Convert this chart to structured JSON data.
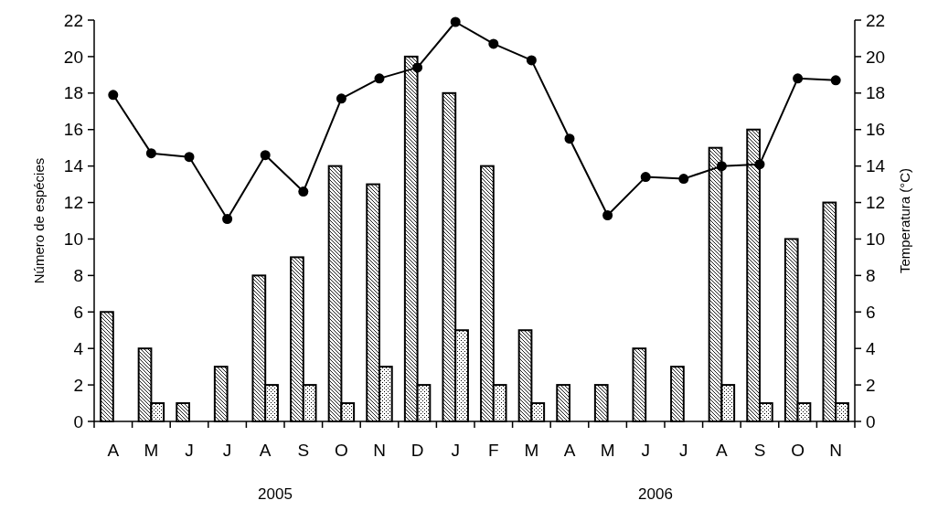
{
  "chart_data": {
    "type": "bar",
    "ylabel": "Número de espécies",
    "y2label": "Temperatura (°C)",
    "categories": [
      "A",
      "M",
      "J",
      "J",
      "A",
      "S",
      "O",
      "N",
      "D",
      "J",
      "F",
      "M",
      "A",
      "M",
      "J",
      "J",
      "A",
      "S",
      "O",
      "N"
    ],
    "series": [
      {
        "color": "#000000",
        "values": [
          6,
          4,
          1,
          3,
          8,
          9,
          14,
          13,
          20,
          18,
          14,
          5,
          2,
          2,
          4,
          3,
          15,
          16,
          10,
          12
        ]
      },
      {
        "color": "#000000",
        "values": [
          null,
          1,
          null,
          null,
          2,
          2,
          1,
          3,
          2,
          5,
          2,
          1,
          null,
          null,
          null,
          null,
          2,
          1,
          1,
          1
        ]
      },
      {
        "type": "line",
        "axis": "y2",
        "color": "#000000",
        "marker": "circle",
        "values": [
          17.9,
          14.7,
          14.5,
          11.1,
          14.6,
          12.6,
          17.7,
          18.8,
          19.4,
          21.9,
          20.7,
          19.8,
          15.5,
          11.3,
          13.4,
          13.3,
          14.0,
          14.1,
          18.8,
          18.7
        ]
      }
    ],
    "ylim": [
      0,
      22
    ],
    "yticks": [
      0,
      2,
      4,
      6,
      8,
      10,
      12,
      14,
      16,
      18,
      20,
      22
    ],
    "y2lim": [
      0,
      22
    ],
    "y2ticks": [
      0,
      2,
      4,
      6,
      8,
      10,
      12,
      14,
      16,
      18,
      20,
      22
    ],
    "annotations": [
      "2005",
      "2006"
    ],
    "grid": false
  }
}
